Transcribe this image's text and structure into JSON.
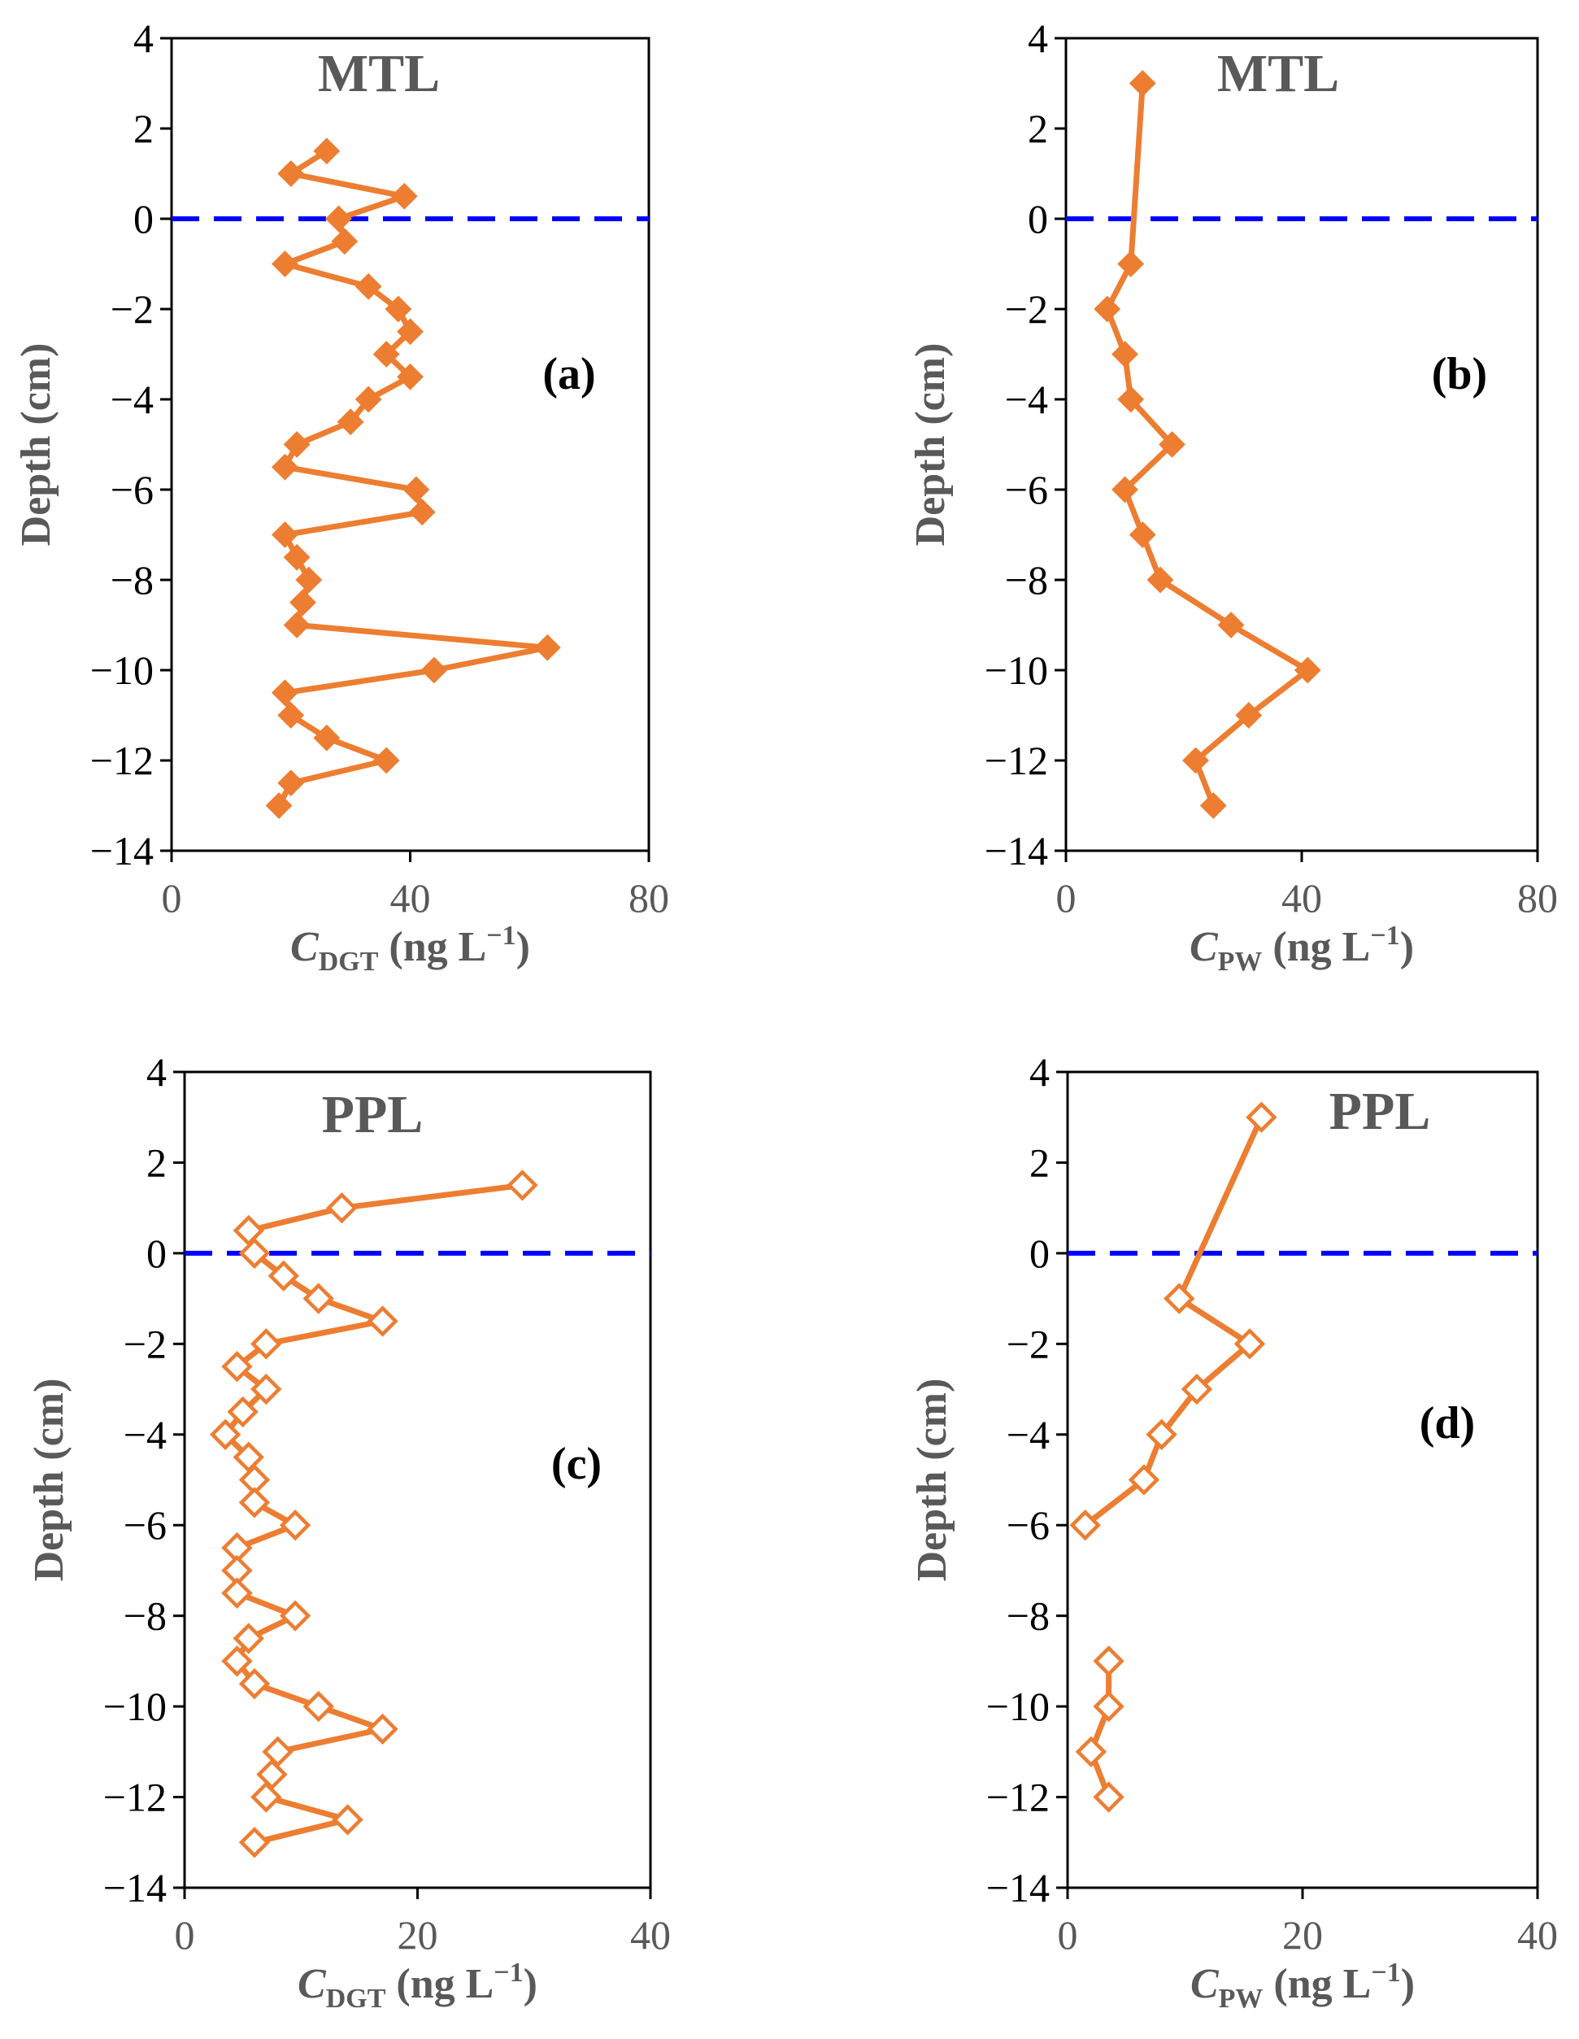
{
  "colors": {
    "series": "#ED7D31",
    "zero_line": "#0000FF",
    "axis": "#000000",
    "label": "#595959"
  },
  "chart_data": [
    {
      "id": "a",
      "type": "line",
      "annotation": "MTL",
      "panel_label": "(a)",
      "marker": "filled-diamond",
      "xlabel_main": "C",
      "xlabel_sub": "DGT",
      "xlabel_unit": " (ng L",
      "xlabel_sup": "−1",
      "xlabel_close": ")",
      "ylabel": "Depth (cm)",
      "xlim": [
        0,
        80
      ],
      "ylim": [
        -14,
        4
      ],
      "xticks": [
        "0",
        "40",
        "80"
      ],
      "yticks": [
        "4",
        "2",
        "0",
        "−2",
        "−4",
        "−6",
        "−8",
        "−10",
        "−12",
        "−14"
      ],
      "reference_line_y": 0,
      "segments": [
        [
          {
            "x": 26,
            "y": 1.5
          },
          {
            "x": 20,
            "y": 1.0
          },
          {
            "x": 39,
            "y": 0.5
          },
          {
            "x": 28,
            "y": 0.0
          },
          {
            "x": 29,
            "y": -0.5
          },
          {
            "x": 19,
            "y": -1.0
          },
          {
            "x": 33,
            "y": -1.5
          },
          {
            "x": 38,
            "y": -2.0
          },
          {
            "x": 40,
            "y": -2.5
          },
          {
            "x": 36,
            "y": -3.0
          },
          {
            "x": 40,
            "y": -3.5
          },
          {
            "x": 33,
            "y": -4.0
          },
          {
            "x": 30,
            "y": -4.5
          },
          {
            "x": 21,
            "y": -5.0
          },
          {
            "x": 19,
            "y": -5.5
          },
          {
            "x": 41,
            "y": -6.0
          },
          {
            "x": 42,
            "y": -6.5
          },
          {
            "x": 19,
            "y": -7.0
          },
          {
            "x": 21,
            "y": -7.5
          },
          {
            "x": 23,
            "y": -8.0
          },
          {
            "x": 22,
            "y": -8.5
          },
          {
            "x": 21,
            "y": -9.0
          },
          {
            "x": 63,
            "y": -9.5
          },
          {
            "x": 44,
            "y": -10.0
          },
          {
            "x": 19,
            "y": -10.5
          },
          {
            "x": 20,
            "y": -11.0
          },
          {
            "x": 26,
            "y": -11.5
          },
          {
            "x": 36,
            "y": -12.0
          },
          {
            "x": 20,
            "y": -12.5
          },
          {
            "x": 18,
            "y": -13.0
          }
        ]
      ]
    },
    {
      "id": "b",
      "type": "line",
      "annotation": "MTL",
      "panel_label": "(b)",
      "marker": "filled-diamond",
      "xlabel_main": "C",
      "xlabel_sub": "PW",
      "xlabel_unit": " (ng L",
      "xlabel_sup": "−1",
      "xlabel_close": ")",
      "ylabel": "Depth (cm)",
      "xlim": [
        0,
        80
      ],
      "ylim": [
        -14,
        4
      ],
      "xticks": [
        "0",
        "40",
        "80"
      ],
      "yticks": [
        "4",
        "2",
        "0",
        "−2",
        "−4",
        "−6",
        "−8",
        "−10",
        "−12",
        "−14"
      ],
      "reference_line_y": 0,
      "segments": [
        [
          {
            "x": 13,
            "y": 3
          },
          {
            "x": 11,
            "y": -1
          },
          {
            "x": 7,
            "y": -2
          },
          {
            "x": 10,
            "y": -3
          },
          {
            "x": 11,
            "y": -4
          },
          {
            "x": 18,
            "y": -5
          },
          {
            "x": 10,
            "y": -6
          },
          {
            "x": 13,
            "y": -7
          },
          {
            "x": 16,
            "y": -8
          },
          {
            "x": 28,
            "y": -9
          },
          {
            "x": 41,
            "y": -10
          },
          {
            "x": 31,
            "y": -11
          },
          {
            "x": 22,
            "y": -12
          },
          {
            "x": 25,
            "y": -13
          }
        ]
      ]
    },
    {
      "id": "c",
      "type": "line",
      "annotation": "PPL",
      "panel_label": "(c)",
      "marker": "open-diamond",
      "xlabel_main": "C",
      "xlabel_sub": "DGT",
      "xlabel_unit": " (ng L",
      "xlabel_sup": "−1",
      "xlabel_close": ")",
      "ylabel": "Depth (cm)",
      "xlim": [
        0,
        40
      ],
      "ylim": [
        -14,
        4
      ],
      "xticks": [
        "0",
        "20",
        "40"
      ],
      "yticks": [
        "4",
        "2",
        "0",
        "−2",
        "−4",
        "−6",
        "−8",
        "−10",
        "−12",
        "−14"
      ],
      "reference_line_y": 0,
      "segments": [
        [
          {
            "x": 29,
            "y": 1.5
          },
          {
            "x": 13.5,
            "y": 1.0
          },
          {
            "x": 5.5,
            "y": 0.5
          },
          {
            "x": 6,
            "y": 0.0
          },
          {
            "x": 8.5,
            "y": -0.5
          },
          {
            "x": 11.5,
            "y": -1.0
          },
          {
            "x": 17,
            "y": -1.5
          },
          {
            "x": 7,
            "y": -2.0
          },
          {
            "x": 4.5,
            "y": -2.5
          },
          {
            "x": 7,
            "y": -3.0
          },
          {
            "x": 5,
            "y": -3.5
          },
          {
            "x": 3.5,
            "y": -4.0
          },
          {
            "x": 5.5,
            "y": -4.5
          },
          {
            "x": 6,
            "y": -5.0
          },
          {
            "x": 6,
            "y": -5.5
          },
          {
            "x": 9.5,
            "y": -6.0
          },
          {
            "x": 4.5,
            "y": -6.5
          },
          {
            "x": 4.5,
            "y": -7.0
          },
          {
            "x": 4.5,
            "y": -7.5
          },
          {
            "x": 9.5,
            "y": -8.0
          },
          {
            "x": 5.5,
            "y": -8.5
          },
          {
            "x": 4.5,
            "y": -9.0
          },
          {
            "x": 6,
            "y": -9.5
          },
          {
            "x": 11.5,
            "y": -10.0
          },
          {
            "x": 17,
            "y": -10.5
          },
          {
            "x": 8,
            "y": -11.0
          },
          {
            "x": 7.5,
            "y": -11.5
          },
          {
            "x": 7,
            "y": -12.0
          },
          {
            "x": 14,
            "y": -12.5
          },
          {
            "x": 6,
            "y": -13.0
          }
        ]
      ]
    },
    {
      "id": "d",
      "type": "line",
      "annotation": "PPL",
      "panel_label": "(d)",
      "marker": "open-diamond",
      "xlabel_main": "C",
      "xlabel_sub": "PW",
      "xlabel_unit": " (ng L",
      "xlabel_sup": "−1",
      "xlabel_close": ")",
      "ylabel": "Depth (cm)",
      "xlim": [
        0,
        40
      ],
      "ylim": [
        -14,
        4
      ],
      "xticks": [
        "0",
        "20",
        "40"
      ],
      "yticks": [
        "4",
        "2",
        "0",
        "−2",
        "−4",
        "−6",
        "−8",
        "−10",
        "−12",
        "−14"
      ],
      "reference_line_y": 0,
      "segments": [
        [
          {
            "x": 16.5,
            "y": 3
          },
          {
            "x": 9.5,
            "y": -1
          },
          {
            "x": 15.5,
            "y": -2
          },
          {
            "x": 11,
            "y": -3
          },
          {
            "x": 8,
            "y": -4
          },
          {
            "x": 6.5,
            "y": -5
          },
          {
            "x": 1.5,
            "y": -6
          }
        ],
        [
          {
            "x": 3.5,
            "y": -9
          },
          {
            "x": 3.5,
            "y": -10
          },
          {
            "x": 2,
            "y": -11
          },
          {
            "x": 3.5,
            "y": -12
          }
        ]
      ]
    }
  ]
}
